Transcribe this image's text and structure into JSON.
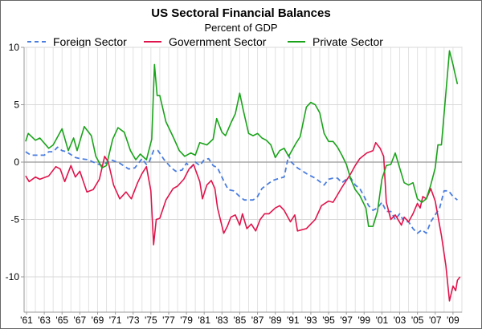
{
  "chart_data": {
    "type": "line",
    "title": "US Sectoral Financial Balances",
    "subtitle": "Percent of GDP",
    "xlabel": "",
    "ylabel": "",
    "ylim": [
      -13,
      10
    ],
    "xlim": [
      1960.9,
      2010.3
    ],
    "yticks": [
      10,
      5,
      0,
      -5,
      -10
    ],
    "xtick_labels": [
      "'61",
      "'63",
      "'65",
      "'67",
      "'69",
      "'71",
      "'73",
      "'75",
      "'77",
      "'79",
      "'81",
      "'83",
      "'85",
      "'87",
      "'89",
      "'91",
      "'93",
      "'95",
      "'97",
      "'99",
      "'01",
      "'03",
      "'05",
      "'07",
      "'09"
    ],
    "xtick_years": [
      1961,
      1963,
      1965,
      1967,
      1969,
      1971,
      1973,
      1975,
      1977,
      1979,
      1981,
      1983,
      1985,
      1987,
      1989,
      1991,
      1993,
      1995,
      1997,
      1999,
      2001,
      2003,
      2005,
      2007,
      2009
    ],
    "grid": true,
    "legend_position": "top",
    "series": [
      {
        "name": "Foreign Sector",
        "color": "#4a7de0",
        "style": "dashed",
        "x": [
          1960.9,
          1961.5,
          1962.3,
          1963,
          1963.5,
          1964,
          1964.5,
          1965,
          1965.5,
          1966.5,
          1967,
          1968,
          1968.5,
          1969.5,
          1970.5,
          1971.5,
          1972.5,
          1973.2,
          1974,
          1974.5,
          1974.8,
          1975.3,
          1975.8,
          1976.5,
          1977.3,
          1977.8,
          1978.5,
          1979,
          1979.5,
          1980,
          1980.5,
          1981,
          1981.5,
          1982,
          1982.5,
          1983.3,
          1983.7,
          1984.3,
          1985,
          1985.5,
          1986.5,
          1987,
          1987.5,
          1988,
          1988.7,
          1989.5,
          1990,
          1990.5,
          1990.8,
          1991.5,
          1992.5,
          1993.5,
          1994,
          1994.5,
          1995,
          1995.5,
          1996,
          1996.5,
          1997,
          1997.5,
          1998,
          1998.5,
          1999,
          1999.5,
          2000,
          2000.5,
          2001,
          2001.5,
          2002,
          2002.5,
          2003,
          2003.5,
          2004,
          2004.5,
          2005,
          2005.5,
          2006,
          2006.5,
          2007,
          2007.5,
          2008,
          2008.5,
          2009,
          2009.5
        ],
        "y": [
          0.9,
          0.6,
          0.6,
          0.6,
          0.9,
          0.9,
          1.3,
          1.0,
          0.9,
          0.4,
          0.3,
          0.2,
          0,
          -0.3,
          0.2,
          -0.1,
          -0.6,
          -0.5,
          0.3,
          -0.2,
          0,
          1.0,
          1.0,
          0.2,
          -0.5,
          -0.8,
          -0.7,
          -0.1,
          -0.5,
          0.0,
          -0.3,
          0.2,
          0.3,
          -0.3,
          -0.5,
          -1.8,
          -2.4,
          -2.5,
          -3.0,
          -3.3,
          -3.3,
          -3.0,
          -2.3,
          -2.0,
          -1.6,
          -1.4,
          -1.3,
          0.6,
          0,
          -0.5,
          -1.0,
          -1.4,
          -1.7,
          -2.0,
          -1.5,
          -1.4,
          -1.4,
          -1.8,
          -1.5,
          -1.4,
          -2.0,
          -2.3,
          -3.0,
          -3.8,
          -4.2,
          -4.0,
          -3.5,
          -4.3,
          -4.3,
          -5.0,
          -4.5,
          -5.2,
          -5.2,
          -5.8,
          -6.2,
          -5.9,
          -6.2,
          -5.2,
          -4.6,
          -4.0,
          -2.5,
          -2.5,
          -3.0,
          -3.3
        ]
      },
      {
        "name": "Government Sector",
        "color": "#e0144c",
        "style": "solid",
        "x": [
          1960.9,
          1961.3,
          1962,
          1962.5,
          1963.5,
          1964.3,
          1964.8,
          1965.3,
          1966,
          1966.5,
          1967,
          1967.8,
          1968.5,
          1969.2,
          1969.8,
          1970.2,
          1970.8,
          1971.5,
          1972.2,
          1972.8,
          1973.5,
          1974,
          1974.5,
          1975.0,
          1975.3,
          1975.6,
          1976,
          1976.7,
          1977.5,
          1978,
          1978.7,
          1979.3,
          1979.8,
          1980.5,
          1980.8,
          1981.3,
          1981.8,
          1982.2,
          1982.5,
          1983.2,
          1983.6,
          1984,
          1984.5,
          1985,
          1985.3,
          1985.8,
          1986.3,
          1986.8,
          1987.3,
          1987.8,
          1988.3,
          1989,
          1989.5,
          1990,
          1990.7,
          1991.2,
          1991.5,
          1992.5,
          1993.5,
          1994.2,
          1995,
          1995.5,
          1996.5,
          1997.5,
          1998,
          1998.5,
          1999.3,
          2000,
          2000.3,
          2000.8,
          2001.2,
          2001.5,
          2002,
          2002.5,
          2003.2,
          2003.5,
          2004,
          2004.5,
          2005,
          2005.3,
          2005.6,
          2006,
          2006.5,
          2007,
          2007.7,
          2008.2,
          2008.6,
          2009,
          2009.3,
          2009.5,
          2009.8
        ],
        "y": [
          -1.2,
          -1.7,
          -1.3,
          -1.5,
          -1.2,
          -0.4,
          -0.6,
          -1.7,
          -0.3,
          -1.3,
          -0.8,
          -2.6,
          -2.4,
          -1.5,
          0.5,
          0,
          -2.0,
          -3.2,
          -2.6,
          -3.2,
          -1.8,
          -1.0,
          -0.4,
          -2.5,
          -7.2,
          -5.0,
          -4.9,
          -3.3,
          -2.3,
          -2.1,
          -1.5,
          -0.6,
          -0.2,
          -1.7,
          -3.2,
          -2.0,
          -1.6,
          -2.3,
          -4.0,
          -6.2,
          -5.6,
          -4.8,
          -4.6,
          -5.5,
          -4.5,
          -5.8,
          -5.4,
          -6.0,
          -5.0,
          -4.5,
          -4.5,
          -4.0,
          -3.8,
          -4.2,
          -5.2,
          -4.6,
          -6.0,
          -5.8,
          -5.0,
          -3.8,
          -3.4,
          -3.5,
          -2.2,
          -1.0,
          -0.3,
          0.3,
          0.8,
          1.0,
          1.7,
          1.2,
          0.5,
          -3.5,
          -5.0,
          -4.6,
          -5.5,
          -4.8,
          -5.2,
          -4.5,
          -3.6,
          -4.0,
          -3.0,
          -3.2,
          -2.3,
          -3.4,
          -6.4,
          -9.0,
          -12.1,
          -10.8,
          -11.2,
          -10.3,
          -10.0
        ]
      },
      {
        "name": "Private Sector",
        "color": "#1aa31a",
        "style": "solid",
        "x": [
          1960.9,
          1961.2,
          1962,
          1962.5,
          1963.5,
          1964,
          1965,
          1965.7,
          1966.3,
          1966.7,
          1967.5,
          1968.3,
          1968.8,
          1969.5,
          1970,
          1970.7,
          1971.3,
          1972,
          1972.7,
          1973.3,
          1973.8,
          1974.5,
          1975.1,
          1975.4,
          1975.7,
          1976,
          1976.7,
          1977.5,
          1978.2,
          1978.8,
          1979.5,
          1980,
          1980.5,
          1981.3,
          1982,
          1982.4,
          1983,
          1983.4,
          1984,
          1984.5,
          1985,
          1985.4,
          1986,
          1986.5,
          1987,
          1987.5,
          1988,
          1988.5,
          1989,
          1989.5,
          1990,
          1990.5,
          1991.3,
          1991.8,
          1992.5,
          1993,
          1993.5,
          1994,
          1994.5,
          1995,
          1995.5,
          1996,
          1996.5,
          1997,
          1997.5,
          1998,
          1998.5,
          1999.2,
          1999.5,
          2000,
          2000.5,
          2001,
          2001.5,
          2002,
          2002.5,
          2003,
          2003.5,
          2004,
          2004.5,
          2005,
          2005.5,
          2006,
          2006.5,
          2007,
          2007.3,
          2007.7,
          2008.2,
          2008.6,
          2009,
          2009.2,
          2009.5
        ],
        "y": [
          1.8,
          2.5,
          1.9,
          2.1,
          1.2,
          1.5,
          2.9,
          1.0,
          2.1,
          1.0,
          3.1,
          2.3,
          0.5,
          -0.5,
          -0.3,
          2.0,
          3.0,
          2.6,
          1.0,
          0.2,
          0.7,
          0.2,
          2.0,
          8.5,
          5.8,
          5.8,
          3.5,
          2.2,
          1.0,
          0.5,
          0.8,
          0.6,
          1.7,
          1.5,
          2.0,
          3.8,
          2.6,
          2.3,
          3.4,
          4.2,
          6.0,
          4.5,
          2.5,
          2.3,
          2.5,
          2.1,
          1.9,
          1.5,
          0.4,
          1.0,
          1.2,
          0.5,
          1.6,
          2.2,
          4.8,
          5.2,
          5.0,
          4.3,
          2.5,
          1.8,
          1.8,
          1.3,
          0.6,
          -0.2,
          -1.5,
          -2.4,
          -2.9,
          -4.0,
          -5.6,
          -5.6,
          -4.3,
          -1.5,
          -0.3,
          -0.2,
          0.8,
          -0.5,
          -1.8,
          -2.0,
          -1.8,
          -3.2,
          -3.5,
          -3.2,
          -2.0,
          -0.5,
          1.5,
          1.5,
          6.0,
          9.7,
          8.5,
          7.8,
          6.8
        ]
      }
    ]
  }
}
